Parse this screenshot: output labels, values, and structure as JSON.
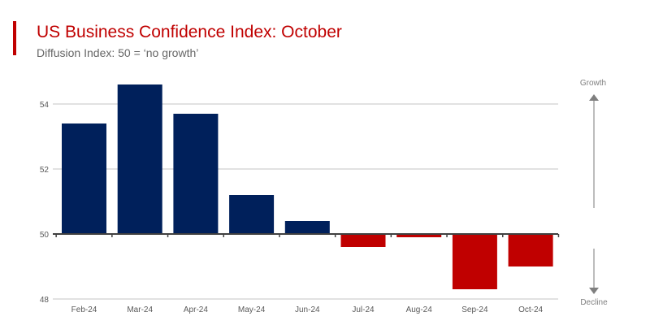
{
  "header": {
    "title": "US Business Confidence Index: October",
    "subtitle": "Diffusion Index: 50 = ‘no growth’"
  },
  "chart_data": {
    "type": "bar",
    "title": "US Business Confidence Index: October",
    "subtitle": "Diffusion Index: 50 = ‘no growth’",
    "categories": [
      "Feb-24",
      "Mar-24",
      "Apr-24",
      "May-24",
      "Jun-24",
      "Jul-24",
      "Aug-24",
      "Sep-24",
      "Oct-24"
    ],
    "values": [
      53.4,
      54.6,
      53.7,
      51.2,
      50.4,
      49.6,
      49.9,
      48.3,
      49.0
    ],
    "baseline": 50,
    "ylim": [
      48,
      55
    ],
    "yticks": [
      48,
      50,
      52,
      54
    ],
    "grid": true,
    "colors": {
      "above": "#00205b",
      "below": "#c00000"
    },
    "annotations": {
      "up": "Growth",
      "down": "Decline"
    }
  }
}
